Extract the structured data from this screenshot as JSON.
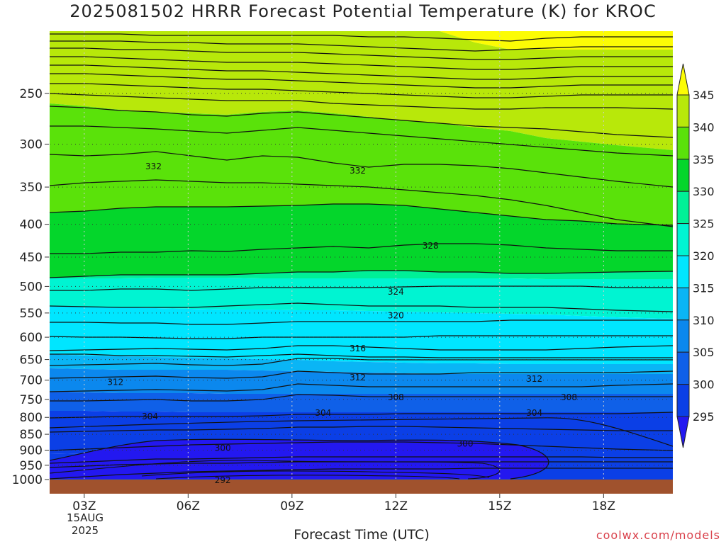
{
  "title": "2025081502 HRRR Forecast Potential Temperature (K) for KROC",
  "x_axis_label": "Forecast Time (UTC)",
  "credit": "coolwx.com/models",
  "date_label": {
    "day": "15AUG",
    "year": "2025"
  },
  "chart_data": {
    "type": "heatmap",
    "title": "2025081502 HRRR Forecast Potential Temperature (K) for KROC",
    "xlabel": "Forecast Time (UTC)",
    "ylabel": "",
    "x_ticks": [
      "03Z",
      "06Z",
      "09Z",
      "12Z",
      "15Z",
      "18Z"
    ],
    "x_tick_hours": [
      3,
      6,
      9,
      12,
      15,
      18
    ],
    "x_range_hours": [
      2,
      20
    ],
    "y_ticks": [
      250,
      300,
      350,
      400,
      450,
      500,
      550,
      600,
      650,
      700,
      750,
      800,
      850,
      900,
      950,
      1000
    ],
    "y_range_hpa": [
      200,
      1000
    ],
    "y_scale": "log-pressure, inverted",
    "grid": true,
    "colorbar": {
      "ticks": [
        295,
        300,
        305,
        310,
        315,
        320,
        325,
        330,
        335,
        340,
        345
      ],
      "colors": [
        "#2318f0",
        "#0b3fe6",
        "#0f60e8",
        "#0b88ee",
        "#0ab5f5",
        "#00e6ff",
        "#00f4d2",
        "#00f097",
        "#04d62b",
        "#5ae20a",
        "#b8e80a",
        "#fcfc05"
      ],
      "extend": "both"
    },
    "contour_labels": [
      {
        "text": "332",
        "x_hour": 5.0,
        "p": 325
      },
      {
        "text": "332",
        "x_hour": 10.9,
        "p": 330
      },
      {
        "text": "328",
        "x_hour": 13.0,
        "p": 432
      },
      {
        "text": "324",
        "x_hour": 12.0,
        "p": 510
      },
      {
        "text": "320",
        "x_hour": 12.0,
        "p": 555
      },
      {
        "text": "316",
        "x_hour": 10.9,
        "p": 625
      },
      {
        "text": "312",
        "x_hour": 3.9,
        "p": 705
      },
      {
        "text": "312",
        "x_hour": 10.9,
        "p": 693
      },
      {
        "text": "312",
        "x_hour": 16.0,
        "p": 697
      },
      {
        "text": "308",
        "x_hour": 12.0,
        "p": 745
      },
      {
        "text": "308",
        "x_hour": 17.0,
        "p": 745
      },
      {
        "text": "304",
        "x_hour": 4.9,
        "p": 797
      },
      {
        "text": "304",
        "x_hour": 9.9,
        "p": 787
      },
      {
        "text": "304",
        "x_hour": 16.0,
        "p": 787
      },
      {
        "text": "300",
        "x_hour": 7.0,
        "p": 893
      },
      {
        "text": "300",
        "x_hour": 14.0,
        "p": 880
      },
      {
        "text": "292",
        "x_hour": 7.0,
        "p": 1002
      }
    ]
  }
}
